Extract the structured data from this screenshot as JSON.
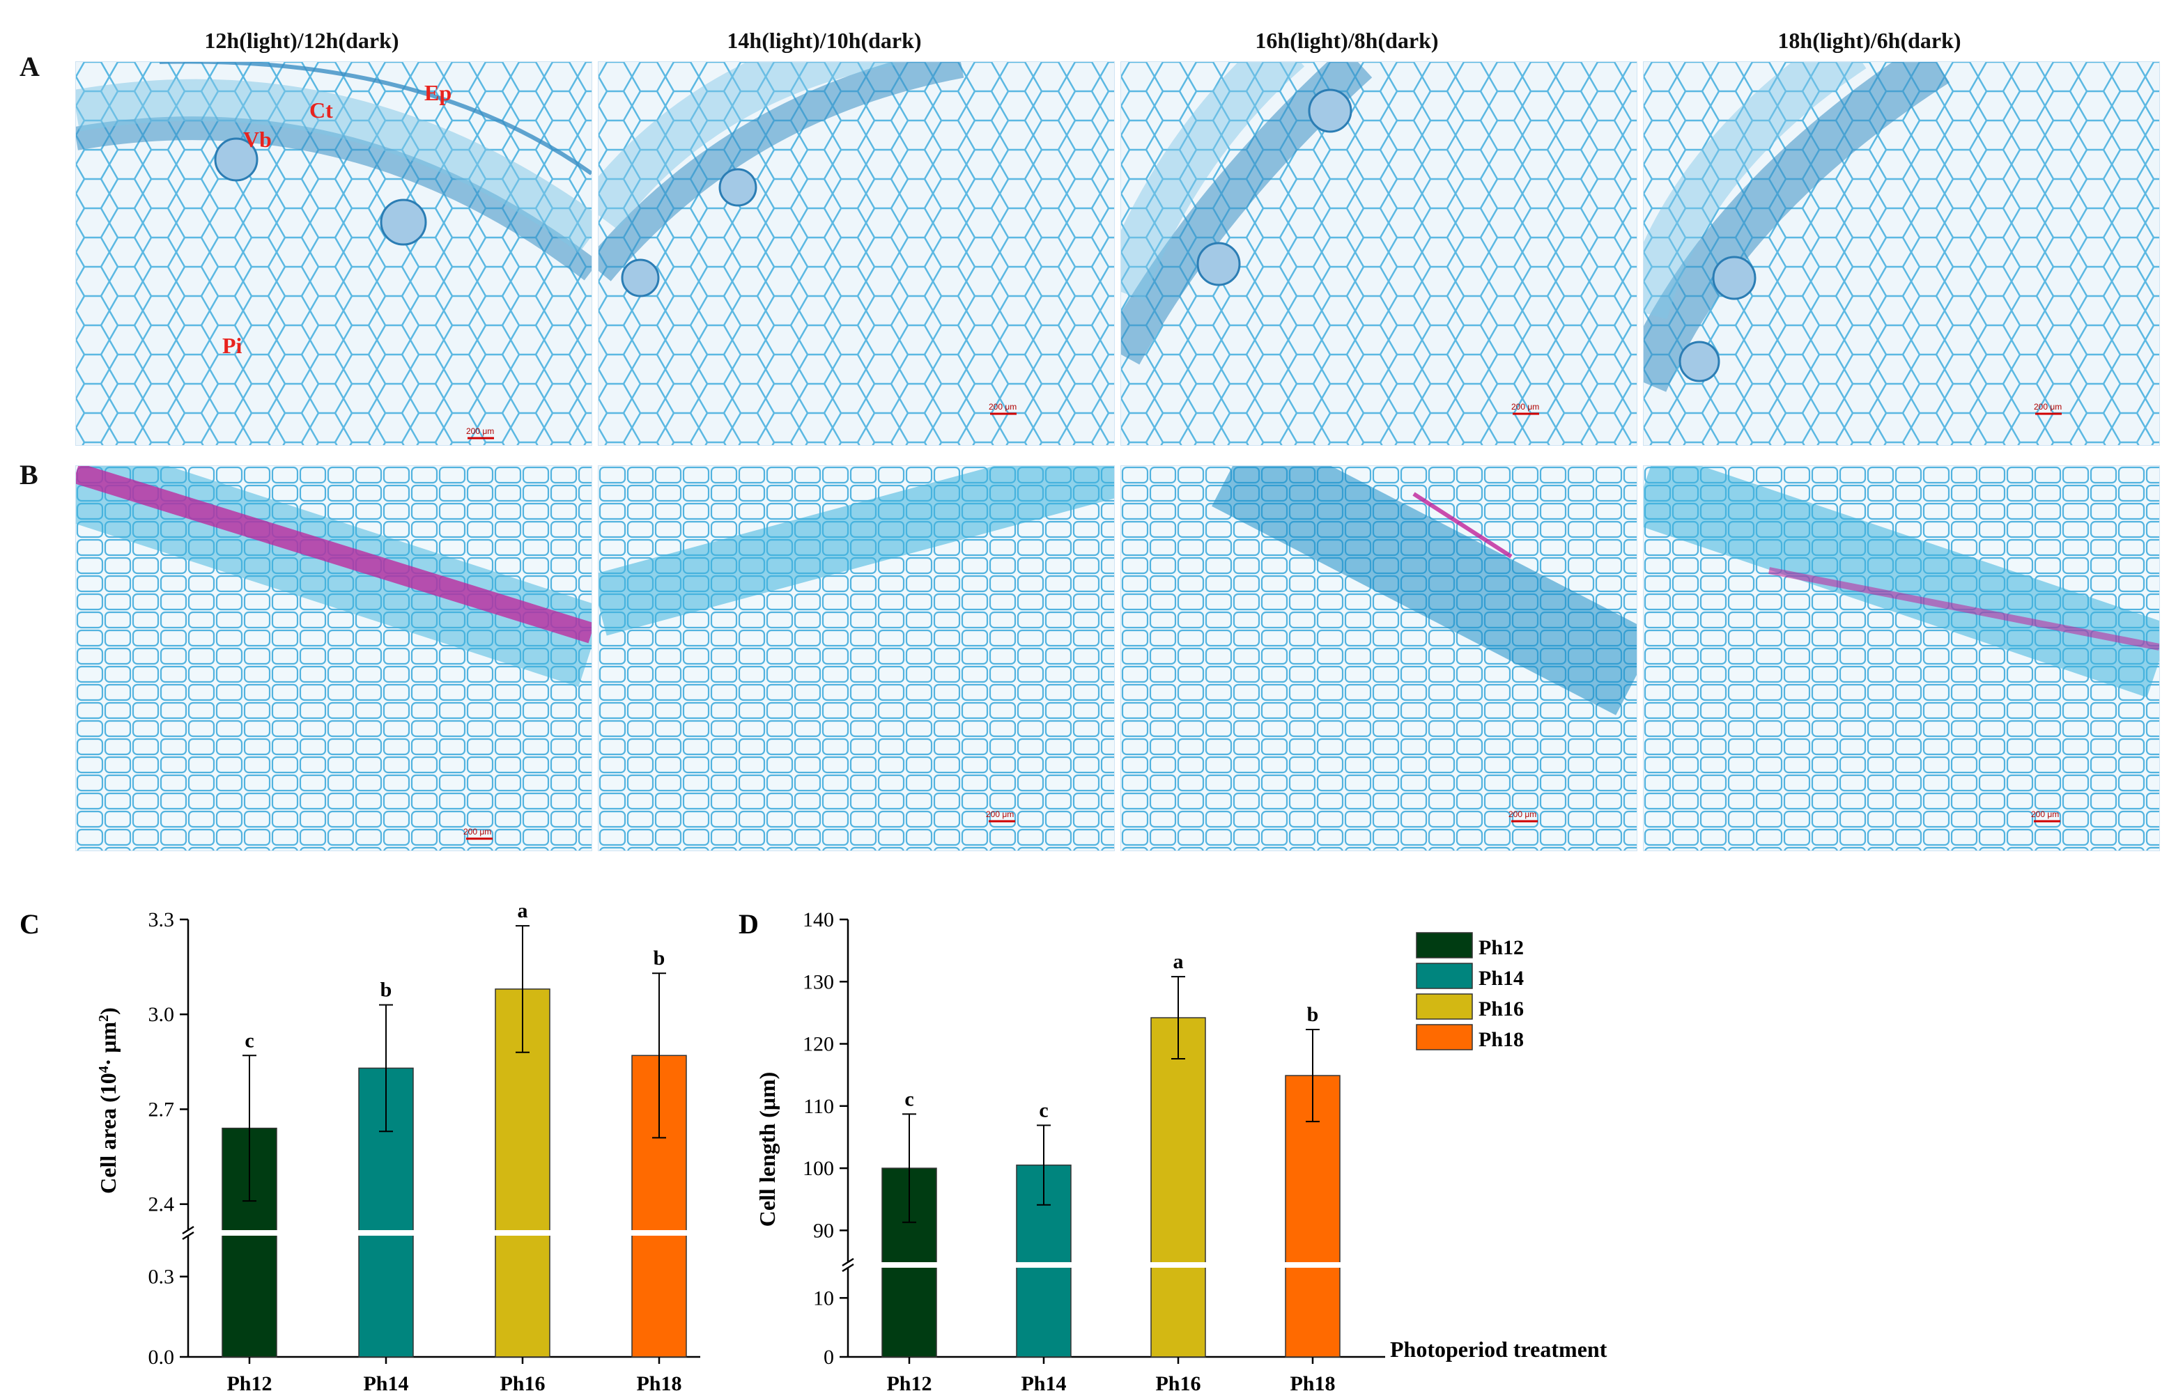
{
  "micrographs": {
    "column_titles": [
      "12h(light)/12h(dark)",
      "14h(light)/10h(dark)",
      "16h(light)/8h(dark)",
      "18h(light)/6h(dark)"
    ],
    "row_labels": [
      "A",
      "B"
    ],
    "tissue_labels": [
      "Ep",
      "Ct",
      "Vb",
      "Pi"
    ],
    "scale_bar_label": "200 μm",
    "stain_colors": {
      "background": "#eef6fb",
      "cell_wall": "#3fb4de",
      "vascular": "#1f8fc9",
      "lignin": "#c0229a"
    }
  },
  "chart_data": [
    {
      "panel": "C",
      "type": "bar",
      "categories": [
        "Ph12",
        "Ph14",
        "Ph16",
        "Ph18"
      ],
      "values": [
        2.64,
        2.83,
        3.08,
        2.87
      ],
      "errors": [
        0.23,
        0.2,
        0.2,
        0.26
      ],
      "significance": [
        "c",
        "b",
        "a",
        "b"
      ],
      "colors": [
        "#003c12",
        "#00857e",
        "#d3b813",
        "#ff6a00"
      ],
      "ylabel_main": "Cell area (10",
      "ylabel_sup1": "4",
      "ylabel_mid": "· μm",
      "ylabel_sup2": "2",
      "ylabel_end": ")",
      "upper_ticks": [
        "2.4",
        "2.7",
        "3.0",
        "3.3"
      ],
      "lower_ticks": [
        "0.0",
        "0.3"
      ],
      "ylim_upper": [
        2.32,
        3.3
      ],
      "ylim_lower": [
        0,
        0.45
      ],
      "axis_break": true
    },
    {
      "panel": "D",
      "type": "bar",
      "categories": [
        "Ph12",
        "Ph14",
        "Ph16",
        "Ph18"
      ],
      "values": [
        100.0,
        100.5,
        124.2,
        114.9
      ],
      "errors": [
        8.7,
        6.4,
        6.6,
        7.4
      ],
      "significance": [
        "c",
        "c",
        "a",
        "b"
      ],
      "colors": [
        "#003c12",
        "#00857e",
        "#d3b813",
        "#ff6a00"
      ],
      "ylabel": "Cell length (μm)",
      "xlabel": "Photoperiod treatment",
      "upper_ticks": [
        "90",
        "100",
        "110",
        "120",
        "130",
        "140"
      ],
      "lower_ticks": [
        "0",
        "10"
      ],
      "ylim_upper": [
        85,
        140
      ],
      "ylim_lower": [
        0,
        15
      ],
      "axis_break": true
    }
  ],
  "legend": {
    "entries": [
      "Ph12",
      "Ph14",
      "Ph16",
      "Ph18"
    ],
    "colors": [
      "#003c12",
      "#00857e",
      "#d3b813",
      "#ff6a00"
    ],
    "placement": "right"
  }
}
